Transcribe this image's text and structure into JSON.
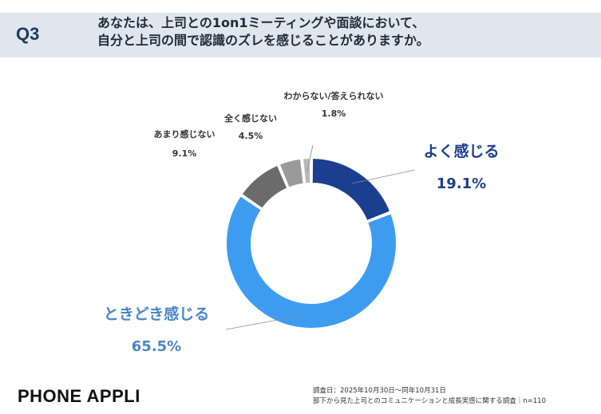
{
  "header": {
    "q_label": "Q3",
    "question_line1": "あなたは、上司との1on1ミーティングや面談において、",
    "question_line2": "自分と上司の間で認識のズレを感じることがありますか。"
  },
  "chart_data": {
    "type": "pie",
    "donut": true,
    "title": "",
    "categories": [
      "よく感じる",
      "ときどき感じる",
      "あまり感じない",
      "全く感じない",
      "わからない/答えられない"
    ],
    "values": [
      19.1,
      65.5,
      9.1,
      4.5,
      1.8
    ],
    "value_labels": [
      "19.1%",
      "65.5%",
      "9.1%",
      "4.5%",
      "1.8%"
    ],
    "colors": [
      "#1a3f8f",
      "#3d9cf0",
      "#6b6b6b",
      "#9a9a9a",
      "#b8b8b8"
    ],
    "label_colors": [
      "#1a3f8f",
      "#4a86c8",
      "#333333",
      "#333333",
      "#333333"
    ],
    "start": "12 o'clock",
    "direction": "clockwise"
  },
  "footer": {
    "brand": "PHONE  APPLI",
    "survey_period": "調査日：2025年10月30日～同年10月31日",
    "survey_title": "部下から見た上司とのコミュニケーションと成長実感に関する調査｜n=110"
  }
}
